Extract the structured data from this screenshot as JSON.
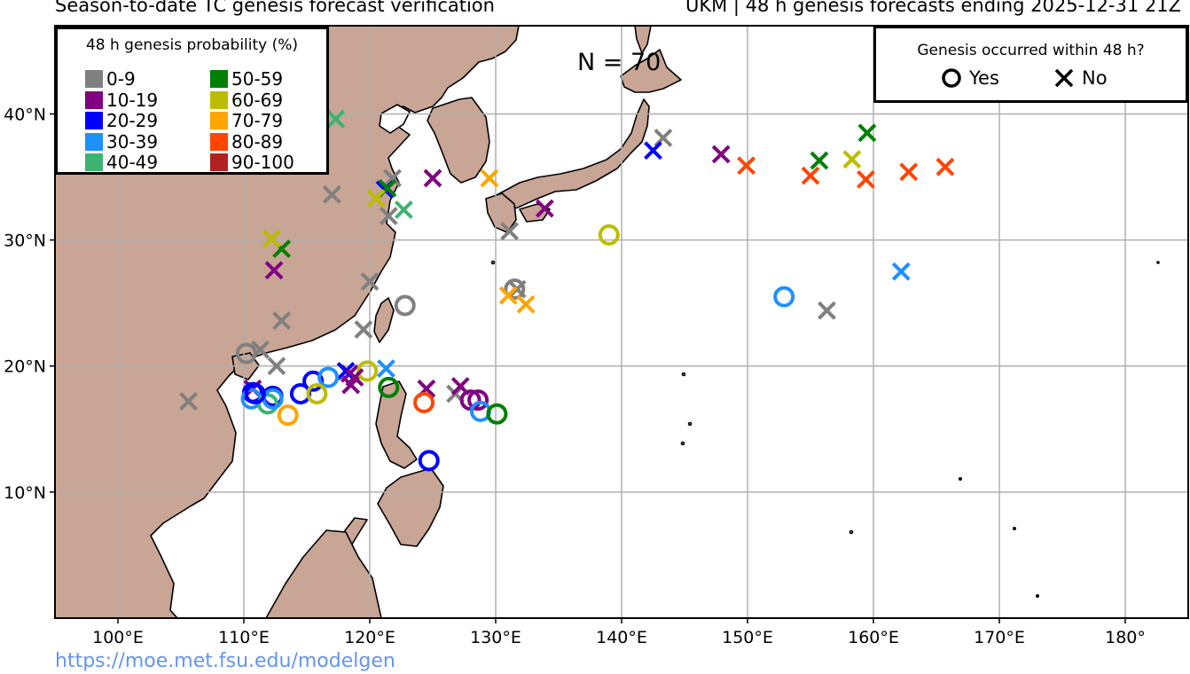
{
  "header": {
    "title_left": "Season-to-date TC genesis forecast verification",
    "title_right": "UKM | 48 h genesis forecasts ending 2025-12-31 21Z"
  },
  "map": {
    "lon_range": [
      95,
      185
    ],
    "lat_range": [
      0,
      47
    ],
    "land_color": "#c8a595",
    "ocean_color": "#ffffff",
    "grid": true,
    "lon_ticks": [
      {
        "lon": 100,
        "label": "100°E"
      },
      {
        "lon": 110,
        "label": "110°E"
      },
      {
        "lon": 120,
        "label": "120°E"
      },
      {
        "lon": 130,
        "label": "130°E"
      },
      {
        "lon": 140,
        "label": "140°E"
      },
      {
        "lon": 150,
        "label": "150°E"
      },
      {
        "lon": 160,
        "label": "160°E"
      },
      {
        "lon": 170,
        "label": "170°E"
      },
      {
        "lon": 180,
        "label": "180°"
      }
    ],
    "lat_ticks": [
      {
        "lat": 10,
        "label": "10°N"
      },
      {
        "lat": 20,
        "label": "20°N"
      },
      {
        "lat": 30,
        "label": "30°N"
      },
      {
        "lat": 40,
        "label": "40°N"
      }
    ]
  },
  "count_label": "N = 70",
  "prob_legend": {
    "title": "48 h genesis probability (%)",
    "bins": [
      {
        "label": "0-9",
        "color": "#808080"
      },
      {
        "label": "10-19",
        "color": "#800080"
      },
      {
        "label": "20-29",
        "color": "#0000ff"
      },
      {
        "label": "30-39",
        "color": "#1e90ff"
      },
      {
        "label": "40-49",
        "color": "#3cb371"
      },
      {
        "label": "50-59",
        "color": "#008000"
      },
      {
        "label": "60-69",
        "color": "#bdbd00"
      },
      {
        "label": "70-79",
        "color": "#ffa500"
      },
      {
        "label": "80-89",
        "color": "#ff4500"
      },
      {
        "label": "90-100",
        "color": "#b22222"
      }
    ]
  },
  "outcome_legend": {
    "title": "Genesis occurred within 48 h?",
    "yes_label": "Yes",
    "no_label": "No"
  },
  "forecasts": [
    {
      "lon": 105.6,
      "lat": 17.2,
      "bin": 0,
      "occurred": false
    },
    {
      "lon": 110.2,
      "lat": 21.0,
      "bin": 0,
      "occurred": true
    },
    {
      "lon": 111.3,
      "lat": 21.3,
      "bin": 0,
      "occurred": false
    },
    {
      "lon": 112.6,
      "lat": 20.0,
      "bin": 0,
      "occurred": false
    },
    {
      "lon": 113.0,
      "lat": 23.6,
      "bin": 0,
      "occurred": false
    },
    {
      "lon": 117.0,
      "lat": 33.6,
      "bin": 0,
      "occurred": false
    },
    {
      "lon": 119.5,
      "lat": 22.9,
      "bin": 0,
      "occurred": false
    },
    {
      "lon": 120.0,
      "lat": 26.7,
      "bin": 0,
      "occurred": false
    },
    {
      "lon": 121.5,
      "lat": 31.9,
      "bin": 0,
      "occurred": false
    },
    {
      "lon": 121.8,
      "lat": 34.9,
      "bin": 0,
      "occurred": false
    },
    {
      "lon": 122.8,
      "lat": 24.8,
      "bin": 0,
      "occurred": true
    },
    {
      "lon": 126.8,
      "lat": 17.8,
      "bin": 0,
      "occurred": false
    },
    {
      "lon": 131.1,
      "lat": 30.7,
      "bin": 0,
      "occurred": false
    },
    {
      "lon": 131.5,
      "lat": 26.1,
      "bin": 0,
      "occurred": true
    },
    {
      "lon": 131.7,
      "lat": 26.1,
      "bin": 0,
      "occurred": false
    },
    {
      "lon": 143.3,
      "lat": 38.1,
      "bin": 0,
      "occurred": false
    },
    {
      "lon": 156.3,
      "lat": 24.4,
      "bin": 0,
      "occurred": false
    },
    {
      "lon": 110.7,
      "lat": 18.2,
      "bin": 1,
      "occurred": false
    },
    {
      "lon": 112.4,
      "lat": 27.6,
      "bin": 1,
      "occurred": false
    },
    {
      "lon": 118.4,
      "lat": 19.4,
      "bin": 1,
      "occurred": false
    },
    {
      "lon": 118.5,
      "lat": 18.5,
      "bin": 1,
      "occurred": false
    },
    {
      "lon": 124.5,
      "lat": 18.2,
      "bin": 1,
      "occurred": false
    },
    {
      "lon": 125.0,
      "lat": 34.9,
      "bin": 1,
      "occurred": false
    },
    {
      "lon": 127.2,
      "lat": 18.4,
      "bin": 1,
      "occurred": false
    },
    {
      "lon": 128.0,
      "lat": 17.3,
      "bin": 1,
      "occurred": true
    },
    {
      "lon": 128.6,
      "lat": 17.3,
      "bin": 1,
      "occurred": true
    },
    {
      "lon": 133.9,
      "lat": 32.5,
      "bin": 1,
      "occurred": false
    },
    {
      "lon": 147.9,
      "lat": 36.8,
      "bin": 1,
      "occurred": false
    },
    {
      "lon": 110.7,
      "lat": 17.9,
      "bin": 2,
      "occurred": true
    },
    {
      "lon": 112.3,
      "lat": 17.6,
      "bin": 2,
      "occurred": true
    },
    {
      "lon": 114.5,
      "lat": 17.8,
      "bin": 2,
      "occurred": true
    },
    {
      "lon": 115.5,
      "lat": 18.8,
      "bin": 2,
      "occurred": true
    },
    {
      "lon": 118.1,
      "lat": 19.6,
      "bin": 2,
      "occurred": false
    },
    {
      "lon": 121.2,
      "lat": 34.0,
      "bin": 2,
      "occurred": false
    },
    {
      "lon": 124.7,
      "lat": 12.5,
      "bin": 2,
      "occurred": true
    },
    {
      "lon": 142.5,
      "lat": 37.1,
      "bin": 2,
      "occurred": false
    },
    {
      "lon": 110.6,
      "lat": 17.4,
      "bin": 3,
      "occurred": true
    },
    {
      "lon": 116.7,
      "lat": 19.1,
      "bin": 3,
      "occurred": true
    },
    {
      "lon": 121.3,
      "lat": 19.8,
      "bin": 3,
      "occurred": false
    },
    {
      "lon": 128.8,
      "lat": 16.4,
      "bin": 3,
      "occurred": true
    },
    {
      "lon": 152.9,
      "lat": 25.5,
      "bin": 3,
      "occurred": true
    },
    {
      "lon": 162.2,
      "lat": 27.5,
      "bin": 3,
      "occurred": false
    },
    {
      "lon": 111.9,
      "lat": 17.0,
      "bin": 4,
      "occurred": true
    },
    {
      "lon": 117.3,
      "lat": 39.6,
      "bin": 4,
      "occurred": false
    },
    {
      "lon": 122.7,
      "lat": 32.4,
      "bin": 4,
      "occurred": false
    },
    {
      "lon": 113.0,
      "lat": 29.3,
      "bin": 5,
      "occurred": false
    },
    {
      "lon": 121.4,
      "lat": 34.1,
      "bin": 5,
      "occurred": false
    },
    {
      "lon": 121.5,
      "lat": 18.3,
      "bin": 5,
      "occurred": true
    },
    {
      "lon": 130.1,
      "lat": 16.2,
      "bin": 5,
      "occurred": true
    },
    {
      "lon": 155.7,
      "lat": 36.3,
      "bin": 5,
      "occurred": false
    },
    {
      "lon": 159.5,
      "lat": 38.5,
      "bin": 5,
      "occurred": false
    },
    {
      "lon": 112.2,
      "lat": 30.1,
      "bin": 6,
      "occurred": false
    },
    {
      "lon": 115.8,
      "lat": 17.8,
      "bin": 6,
      "occurred": true
    },
    {
      "lon": 119.8,
      "lat": 19.6,
      "bin": 6,
      "occurred": true
    },
    {
      "lon": 120.5,
      "lat": 33.3,
      "bin": 6,
      "occurred": false
    },
    {
      "lon": 139.0,
      "lat": 30.4,
      "bin": 6,
      "occurred": true
    },
    {
      "lon": 158.3,
      "lat": 36.4,
      "bin": 6,
      "occurred": false
    },
    {
      "lon": 129.5,
      "lat": 34.9,
      "bin": 7,
      "occurred": false
    },
    {
      "lon": 131.0,
      "lat": 25.6,
      "bin": 7,
      "occurred": false
    },
    {
      "lon": 132.4,
      "lat": 24.9,
      "bin": 7,
      "occurred": false
    },
    {
      "lon": 113.5,
      "lat": 16.1,
      "bin": 7,
      "occurred": true
    },
    {
      "lon": 124.3,
      "lat": 17.1,
      "bin": 8,
      "occurred": true
    },
    {
      "lon": 149.9,
      "lat": 35.9,
      "bin": 8,
      "occurred": false
    },
    {
      "lon": 155.0,
      "lat": 35.1,
      "bin": 8,
      "occurred": false
    },
    {
      "lon": 159.4,
      "lat": 34.8,
      "bin": 8,
      "occurred": false
    },
    {
      "lon": 162.8,
      "lat": 35.4,
      "bin": 8,
      "occurred": false
    },
    {
      "lon": 165.7,
      "lat": 35.8,
      "bin": 8,
      "occurred": false
    },
    {
      "lon": 112.3,
      "lat": 17.4,
      "bin": 3,
      "occurred": true
    },
    {
      "lon": 110.9,
      "lat": 17.8,
      "bin": 2,
      "occurred": true
    },
    {
      "lon": 118.8,
      "lat": 19.1,
      "bin": 1,
      "occurred": false
    }
  ],
  "footer": {
    "source_url": "https://moe.met.fsu.edu/modelgen"
  }
}
